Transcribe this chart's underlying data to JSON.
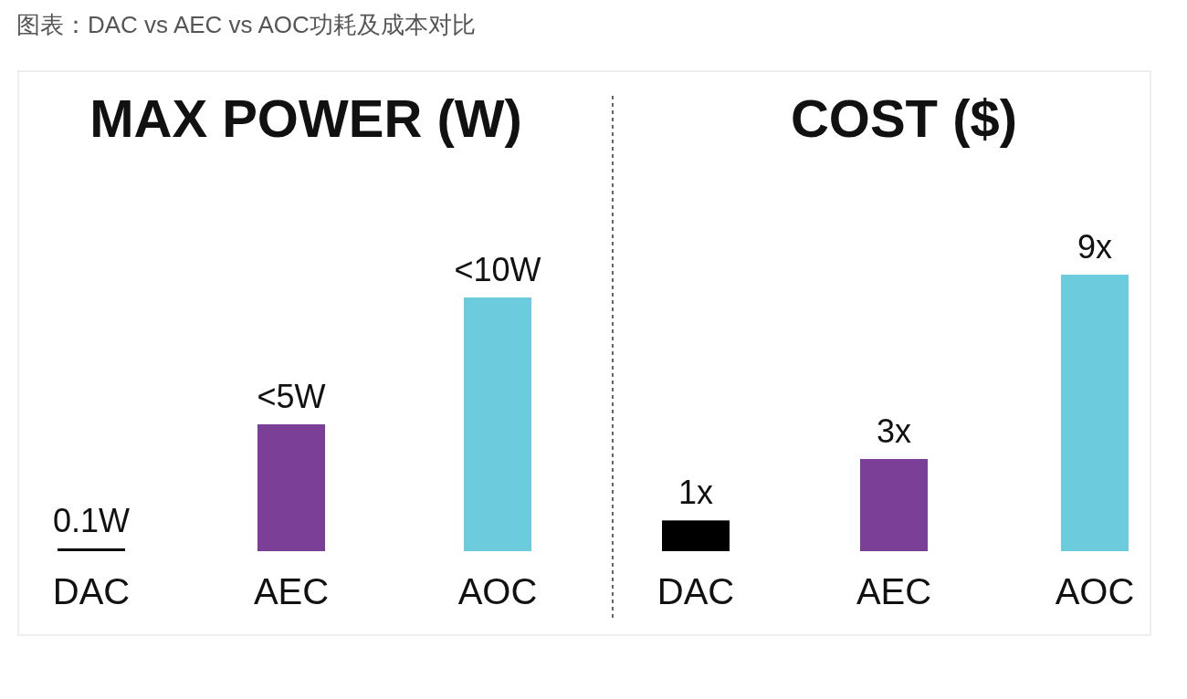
{
  "chart_data": [
    {
      "type": "bar",
      "title": "MAX POWER (W)",
      "annotations": [
        "图表：DAC vs AEC vs AOC功耗及成本对比"
      ],
      "categories": [
        "DAC",
        "AEC",
        "AOC"
      ],
      "values": [
        0.1,
        5,
        10
      ],
      "colors": [
        "#000000",
        "#7b3f98",
        "#6ccbdc"
      ],
      "value_labels": [
        "0.1W",
        "<5W",
        "<10W"
      ]
    },
    {
      "type": "bar",
      "title": "COST ($)",
      "categories": [
        "DAC",
        "AEC",
        "AOC"
      ],
      "values": [
        1,
        3,
        9
      ],
      "colors": [
        "#000000",
        "#7b3f98",
        "#6ccbdc"
      ],
      "value_labels": [
        "1x",
        "3x",
        "9x"
      ]
    }
  ]
}
